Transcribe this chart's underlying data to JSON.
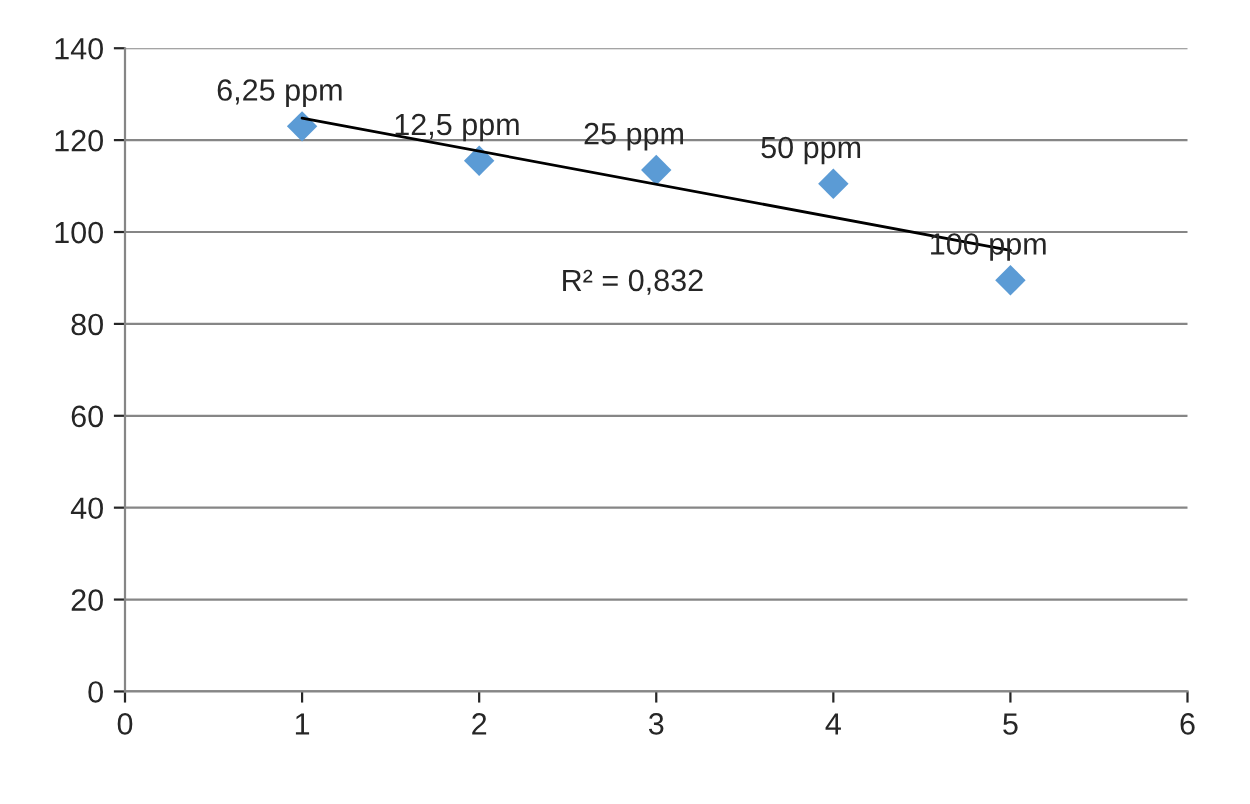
{
  "chart_data": {
    "type": "scatter",
    "x": [
      1,
      2,
      3,
      4,
      5
    ],
    "series": [
      {
        "color": "#5b9bd5",
        "marker": "diamond",
        "values": [
          123,
          115.5,
          113.5,
          110.5,
          89.5
        ]
      },
      {
        "type": "line",
        "color": "#000000",
        "marker": "none",
        "line_style": "solid",
        "x": [
          1,
          5
        ],
        "values": [
          124.8,
          96.0
        ]
      }
    ],
    "annotations": [
      {
        "text": "6,25 ppm",
        "x": 1,
        "y": 123
      },
      {
        "text": "12,5 ppm",
        "x": 2,
        "y": 115.5
      },
      {
        "text": "25 ppm",
        "x": 3,
        "y": 113.5
      },
      {
        "text": "50 ppm",
        "x": 4,
        "y": 110.5
      },
      {
        "text": "100 ppm",
        "x": 5,
        "y": 89.5
      },
      "R² = 0,832"
    ],
    "xlim": [
      0,
      6
    ],
    "xticks": [
      0,
      1,
      2,
      3,
      4,
      5,
      6
    ],
    "ylim": [
      0,
      140
    ],
    "yticks": [
      0,
      20,
      40,
      60,
      80,
      100,
      120,
      140
    ],
    "grid": "y",
    "legend": false
  }
}
